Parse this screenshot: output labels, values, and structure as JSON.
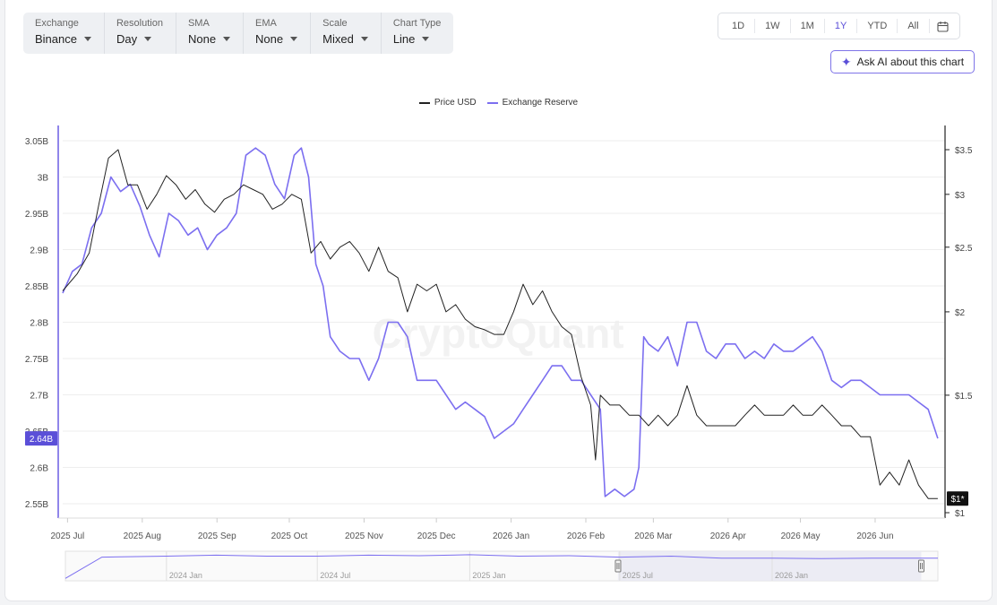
{
  "toolbar": {
    "selectors": [
      {
        "label": "Exchange",
        "value": "Binance"
      },
      {
        "label": "Resolution",
        "value": "Day"
      },
      {
        "label": "SMA",
        "value": "None"
      },
      {
        "label": "EMA",
        "value": "None"
      },
      {
        "label": "Scale",
        "value": "Mixed"
      },
      {
        "label": "Chart Type",
        "value": "Line"
      }
    ],
    "ranges": [
      "1D",
      "1W",
      "1M",
      "1Y",
      "YTD",
      "All"
    ],
    "active_range": "1Y",
    "calendar_icon": "calendar-icon",
    "ask_ai_label": "Ask AI about this chart",
    "ask_ai_icon": "sparkle-icon"
  },
  "watermark": "CryptoQuant",
  "colors": {
    "price": "#222222",
    "reserve": "#7c6ff0",
    "accent": "#5b4fd8"
  },
  "chart_data": {
    "type": "line",
    "legend": [
      "Price USD",
      "Exchange Reserve"
    ],
    "x_ticks": [
      "2025 Jul",
      "2025 Aug",
      "2025 Sep",
      "2025 Oct",
      "2025 Nov",
      "2025 Dec",
      "2026 Jan",
      "2026 Feb",
      "2026 Mar",
      "2026 Apr",
      "2026 May",
      "2026 Jun"
    ],
    "x_range": [
      "2025-06-29",
      "2026-06-30"
    ],
    "y_left": {
      "ticks": [
        "3.05B",
        "3B",
        "2.95B",
        "2.9B",
        "2.85B",
        "2.8B",
        "2.75B",
        "2.7B",
        "2.65B",
        "2.6B",
        "2.55B"
      ],
      "range": [
        2.55,
        3.05
      ],
      "current_label": "2.64B"
    },
    "y_right": {
      "scale": "log",
      "ticks": [
        "$3.5",
        "$3",
        "$2.5",
        "$2",
        "$1.5",
        "$1"
      ],
      "range": [
        1.0,
        3.5
      ],
      "current_label": "$1*"
    },
    "series": [
      {
        "name": "Price USD",
        "axis": "right",
        "points": [
          [
            "2025-06-29",
            2.15
          ],
          [
            "2025-07-05",
            2.28
          ],
          [
            "2025-07-10",
            2.45
          ],
          [
            "2025-07-14",
            2.9
          ],
          [
            "2025-07-18",
            3.4
          ],
          [
            "2025-07-22",
            3.5
          ],
          [
            "2025-07-26",
            3.1
          ],
          [
            "2025-07-30",
            3.1
          ],
          [
            "2025-08-03",
            2.85
          ],
          [
            "2025-08-07",
            3.0
          ],
          [
            "2025-08-11",
            3.2
          ],
          [
            "2025-08-15",
            3.1
          ],
          [
            "2025-08-19",
            2.95
          ],
          [
            "2025-08-23",
            3.05
          ],
          [
            "2025-08-27",
            2.9
          ],
          [
            "2025-08-31",
            2.82
          ],
          [
            "2025-09-04",
            2.95
          ],
          [
            "2025-09-08",
            3.0
          ],
          [
            "2025-09-12",
            3.1
          ],
          [
            "2025-09-16",
            3.05
          ],
          [
            "2025-09-20",
            3.0
          ],
          [
            "2025-09-24",
            2.85
          ],
          [
            "2025-09-28",
            2.9
          ],
          [
            "2025-10-02",
            3.0
          ],
          [
            "2025-10-06",
            2.95
          ],
          [
            "2025-10-10",
            2.45
          ],
          [
            "2025-10-14",
            2.55
          ],
          [
            "2025-10-18",
            2.4
          ],
          [
            "2025-10-22",
            2.5
          ],
          [
            "2025-10-26",
            2.55
          ],
          [
            "2025-10-30",
            2.45
          ],
          [
            "2025-11-03",
            2.3
          ],
          [
            "2025-11-07",
            2.5
          ],
          [
            "2025-11-11",
            2.3
          ],
          [
            "2025-11-15",
            2.25
          ],
          [
            "2025-11-19",
            2.0
          ],
          [
            "2025-11-23",
            2.2
          ],
          [
            "2025-11-27",
            2.15
          ],
          [
            "2025-12-01",
            2.2
          ],
          [
            "2025-12-05",
            2.0
          ],
          [
            "2025-12-09",
            2.05
          ],
          [
            "2025-12-13",
            1.95
          ],
          [
            "2025-12-17",
            1.9
          ],
          [
            "2025-12-21",
            1.88
          ],
          [
            "2025-12-25",
            1.85
          ],
          [
            "2025-12-29",
            1.85
          ],
          [
            "2026-01-02",
            2.0
          ],
          [
            "2026-01-06",
            2.2
          ],
          [
            "2026-01-10",
            2.05
          ],
          [
            "2026-01-14",
            2.15
          ],
          [
            "2026-01-18",
            2.0
          ],
          [
            "2026-01-22",
            1.9
          ],
          [
            "2026-01-26",
            1.85
          ],
          [
            "2026-01-30",
            1.6
          ],
          [
            "2026-02-03",
            1.45
          ],
          [
            "2026-02-05",
            1.2
          ],
          [
            "2026-02-07",
            1.5
          ],
          [
            "2026-02-11",
            1.45
          ],
          [
            "2026-02-15",
            1.45
          ],
          [
            "2026-02-19",
            1.4
          ],
          [
            "2026-02-23",
            1.4
          ],
          [
            "2026-02-27",
            1.35
          ],
          [
            "2026-03-03",
            1.4
          ],
          [
            "2026-03-07",
            1.35
          ],
          [
            "2026-03-11",
            1.4
          ],
          [
            "2026-03-15",
            1.55
          ],
          [
            "2026-03-19",
            1.4
          ],
          [
            "2026-03-23",
            1.35
          ],
          [
            "2026-03-27",
            1.35
          ],
          [
            "2026-03-31",
            1.35
          ],
          [
            "2026-04-04",
            1.35
          ],
          [
            "2026-04-08",
            1.4
          ],
          [
            "2026-04-12",
            1.45
          ],
          [
            "2026-04-16",
            1.4
          ],
          [
            "2026-04-20",
            1.4
          ],
          [
            "2026-04-24",
            1.4
          ],
          [
            "2026-04-28",
            1.45
          ],
          [
            "2026-05-02",
            1.4
          ],
          [
            "2026-05-06",
            1.4
          ],
          [
            "2026-05-10",
            1.45
          ],
          [
            "2026-05-14",
            1.4
          ],
          [
            "2026-05-18",
            1.35
          ],
          [
            "2026-05-22",
            1.35
          ],
          [
            "2026-05-26",
            1.3
          ],
          [
            "2026-05-30",
            1.3
          ],
          [
            "2026-06-03",
            1.1
          ],
          [
            "2026-06-07",
            1.15
          ],
          [
            "2026-06-11",
            1.1
          ],
          [
            "2026-06-15",
            1.2
          ],
          [
            "2026-06-19",
            1.1
          ],
          [
            "2026-06-23",
            1.05
          ],
          [
            "2026-06-27",
            1.05
          ]
        ]
      },
      {
        "name": "Exchange Reserve",
        "axis": "left",
        "points": [
          [
            "2025-06-29",
            2.84
          ],
          [
            "2025-07-03",
            2.87
          ],
          [
            "2025-07-07",
            2.88
          ],
          [
            "2025-07-11",
            2.93
          ],
          [
            "2025-07-15",
            2.95
          ],
          [
            "2025-07-19",
            3.0
          ],
          [
            "2025-07-23",
            2.98
          ],
          [
            "2025-07-27",
            2.99
          ],
          [
            "2025-07-31",
            2.96
          ],
          [
            "2025-08-04",
            2.92
          ],
          [
            "2025-08-08",
            2.89
          ],
          [
            "2025-08-12",
            2.95
          ],
          [
            "2025-08-16",
            2.94
          ],
          [
            "2025-08-20",
            2.92
          ],
          [
            "2025-08-24",
            2.93
          ],
          [
            "2025-08-28",
            2.9
          ],
          [
            "2025-09-01",
            2.92
          ],
          [
            "2025-09-05",
            2.93
          ],
          [
            "2025-09-09",
            2.95
          ],
          [
            "2025-09-13",
            3.03
          ],
          [
            "2025-09-17",
            3.04
          ],
          [
            "2025-09-21",
            3.03
          ],
          [
            "2025-09-25",
            2.99
          ],
          [
            "2025-09-29",
            2.97
          ],
          [
            "2025-10-03",
            3.03
          ],
          [
            "2025-10-06",
            3.04
          ],
          [
            "2025-10-09",
            3.0
          ],
          [
            "2025-10-12",
            2.88
          ],
          [
            "2025-10-15",
            2.85
          ],
          [
            "2025-10-18",
            2.78
          ],
          [
            "2025-10-22",
            2.76
          ],
          [
            "2025-10-26",
            2.75
          ],
          [
            "2025-10-30",
            2.75
          ],
          [
            "2025-11-03",
            2.72
          ],
          [
            "2025-11-07",
            2.75
          ],
          [
            "2025-11-11",
            2.8
          ],
          [
            "2025-11-15",
            2.8
          ],
          [
            "2025-11-19",
            2.78
          ],
          [
            "2025-11-23",
            2.72
          ],
          [
            "2025-11-27",
            2.72
          ],
          [
            "2025-12-01",
            2.72
          ],
          [
            "2025-12-05",
            2.7
          ],
          [
            "2025-12-09",
            2.68
          ],
          [
            "2025-12-13",
            2.69
          ],
          [
            "2025-12-17",
            2.68
          ],
          [
            "2025-12-21",
            2.67
          ],
          [
            "2025-12-25",
            2.64
          ],
          [
            "2025-12-29",
            2.65
          ],
          [
            "2026-01-02",
            2.66
          ],
          [
            "2026-01-06",
            2.68
          ],
          [
            "2026-01-10",
            2.7
          ],
          [
            "2026-01-14",
            2.72
          ],
          [
            "2026-01-18",
            2.74
          ],
          [
            "2026-01-22",
            2.74
          ],
          [
            "2026-01-26",
            2.72
          ],
          [
            "2026-01-30",
            2.72
          ],
          [
            "2026-02-03",
            2.7
          ],
          [
            "2026-02-07",
            2.68
          ],
          [
            "2026-02-09",
            2.56
          ],
          [
            "2026-02-13",
            2.57
          ],
          [
            "2026-02-17",
            2.56
          ],
          [
            "2026-02-21",
            2.57
          ],
          [
            "2026-02-23",
            2.6
          ],
          [
            "2026-02-25",
            2.78
          ],
          [
            "2026-02-27",
            2.77
          ],
          [
            "2026-03-03",
            2.76
          ],
          [
            "2026-03-07",
            2.78
          ],
          [
            "2026-03-11",
            2.74
          ],
          [
            "2026-03-15",
            2.8
          ],
          [
            "2026-03-19",
            2.8
          ],
          [
            "2026-03-23",
            2.76
          ],
          [
            "2026-03-27",
            2.75
          ],
          [
            "2026-03-31",
            2.77
          ],
          [
            "2026-04-04",
            2.77
          ],
          [
            "2026-04-08",
            2.75
          ],
          [
            "2026-04-12",
            2.76
          ],
          [
            "2026-04-16",
            2.75
          ],
          [
            "2026-04-20",
            2.77
          ],
          [
            "2026-04-24",
            2.76
          ],
          [
            "2026-04-28",
            2.76
          ],
          [
            "2026-05-02",
            2.77
          ],
          [
            "2026-05-06",
            2.78
          ],
          [
            "2026-05-10",
            2.76
          ],
          [
            "2026-05-14",
            2.72
          ],
          [
            "2026-05-18",
            2.71
          ],
          [
            "2026-05-22",
            2.72
          ],
          [
            "2026-05-26",
            2.72
          ],
          [
            "2026-05-30",
            2.71
          ],
          [
            "2026-06-03",
            2.7
          ],
          [
            "2026-06-07",
            2.7
          ],
          [
            "2026-06-11",
            2.7
          ],
          [
            "2026-06-15",
            2.7
          ],
          [
            "2026-06-19",
            2.69
          ],
          [
            "2026-06-23",
            2.68
          ],
          [
            "2026-06-27",
            2.64
          ]
        ]
      }
    ]
  },
  "navigator": {
    "labels": [
      "2024 Jan",
      "2024 Jul",
      "2025 Jan",
      "2025 Jul",
      "2026 Jan"
    ],
    "x_range": [
      "2023-09-01",
      "2026-07-20"
    ],
    "selection": [
      "2025-06-29",
      "2026-06-30"
    ],
    "series": [
      [
        "2023-09-01",
        2.55
      ],
      [
        "2023-10-15",
        2.98
      ],
      [
        "2024-01-01",
        3.0
      ],
      [
        "2024-03-01",
        3.02
      ],
      [
        "2024-05-01",
        3.0
      ],
      [
        "2024-07-01",
        3.0
      ],
      [
        "2024-09-01",
        3.02
      ],
      [
        "2024-11-01",
        3.01
      ],
      [
        "2025-01-01",
        3.03
      ],
      [
        "2025-03-01",
        3.0
      ],
      [
        "2025-05-01",
        3.01
      ],
      [
        "2025-07-01",
        2.98
      ],
      [
        "2025-09-01",
        3.0
      ],
      [
        "2025-11-01",
        2.96
      ],
      [
        "2026-01-01",
        2.96
      ],
      [
        "2026-03-01",
        2.95
      ],
      [
        "2026-05-01",
        2.96
      ],
      [
        "2026-07-01",
        2.96
      ],
      [
        "2026-07-20",
        2.96
      ]
    ]
  }
}
